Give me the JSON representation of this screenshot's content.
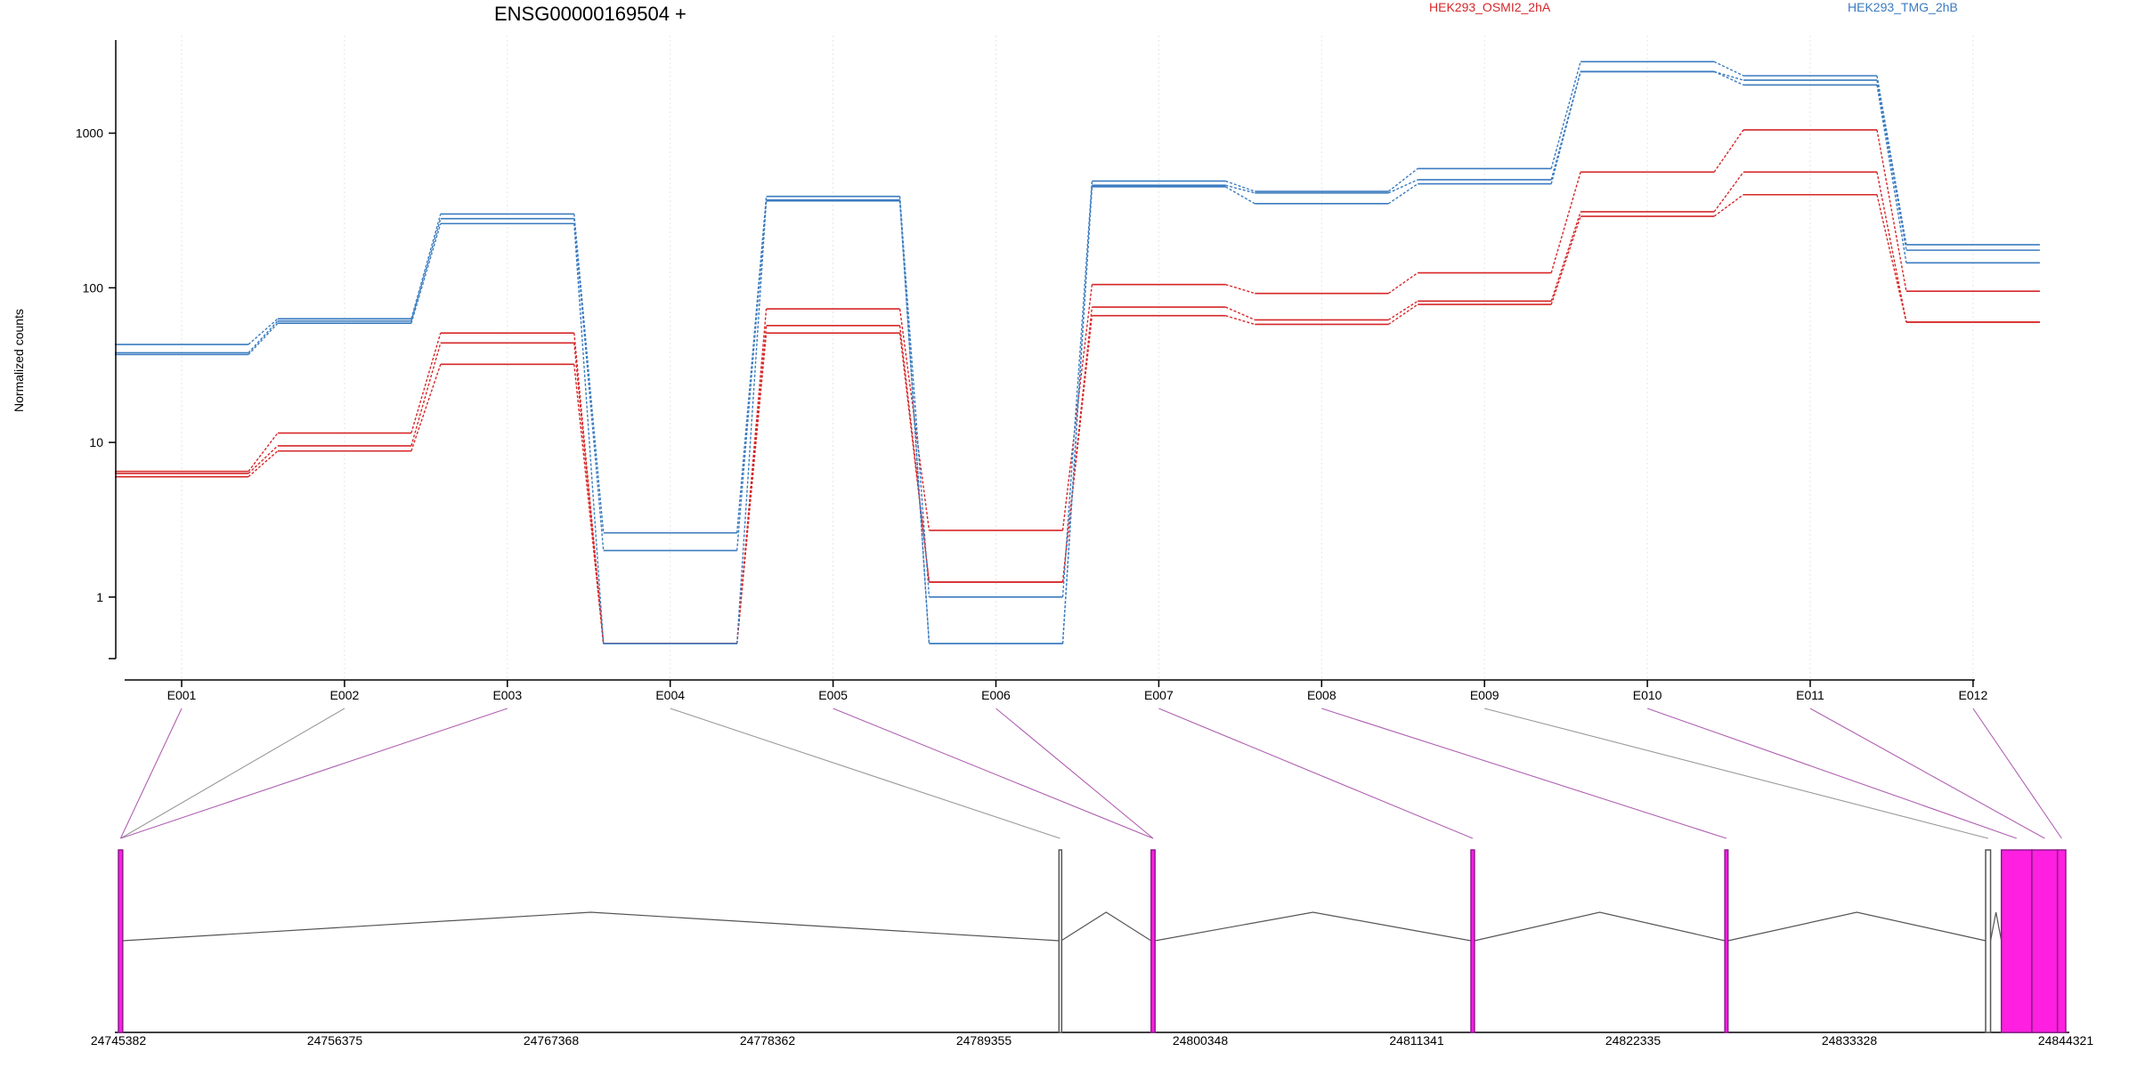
{
  "chart_data": {
    "type": "line",
    "title": "ENSG00000169504 +",
    "ylabel": "Normalized counts",
    "yscale": "log",
    "ylim": [
      0.4,
      4000
    ],
    "yticks": [
      1,
      10,
      100,
      1000
    ],
    "ytick_labels": [
      "1",
      "10",
      "100",
      "1000"
    ],
    "categories": [
      "E001",
      "E002",
      "E003",
      "E004",
      "E005",
      "E006",
      "E007",
      "E008",
      "E009",
      "E010",
      "E011",
      "E012"
    ],
    "legend": [
      {
        "label": "HEK293_OSMI2_2hA",
        "color": "#d62728"
      },
      {
        "label": "HEK293_TMG_2hB",
        "color": "#3a7bbf"
      }
    ],
    "series": [
      {
        "group": "HEK293_OSMI2_2hA",
        "color": "#d62728",
        "values": [
          6.5,
          11.5,
          51,
          0.5,
          73,
          2.7,
          105,
          92,
          125,
          560,
          1050,
          95
        ]
      },
      {
        "group": "HEK293_OSMI2_2hA",
        "color": "#d62728",
        "values": [
          6.3,
          9.5,
          44,
          0.5,
          57,
          1.25,
          75,
          62,
          82,
          310,
          560,
          60
        ]
      },
      {
        "group": "HEK293_OSMI2_2hA",
        "color": "#d62728",
        "values": [
          6.0,
          8.8,
          32,
          0.5,
          51,
          1.25,
          66,
          58,
          78,
          290,
          400,
          60
        ]
      },
      {
        "group": "HEK293_TMG_2hB",
        "color": "#3a7bbf",
        "values": [
          43,
          63,
          300,
          2.6,
          390,
          1.0,
          490,
          420,
          590,
          2900,
          2350,
          190
        ]
      },
      {
        "group": "HEK293_TMG_2hB",
        "color": "#3a7bbf",
        "values": [
          38,
          61,
          280,
          2.0,
          370,
          0.5,
          460,
          410,
          500,
          2500,
          2200,
          175
        ]
      },
      {
        "group": "HEK293_TMG_2hB",
        "color": "#3a7bbf",
        "values": [
          37,
          59,
          260,
          0.5,
          365,
          0.5,
          450,
          350,
          470,
          2500,
          2050,
          145
        ]
      }
    ],
    "gene_model": {
      "coordinate_labels": [
        "24745382",
        "24756375",
        "24767368",
        "24778362",
        "24789355",
        "24800348",
        "24811341",
        "24822335",
        "24833328",
        "24844321"
      ],
      "exon_start": 24745382,
      "exon_end": 24844321,
      "exons": [
        {
          "id": "E001",
          "start": 24745382,
          "end": 24745600,
          "tested": true
        },
        {
          "id": "E002",
          "start": 24745382,
          "end": 24745600,
          "tested": false
        },
        {
          "id": "E003",
          "start": 24745382,
          "end": 24745600,
          "tested": true
        },
        {
          "id": "E004",
          "start": 24793170,
          "end": 24793280,
          "tested": false
        },
        {
          "id": "E005",
          "start": 24797850,
          "end": 24798050,
          "tested": true
        },
        {
          "id": "E006",
          "start": 24797850,
          "end": 24798050,
          "tested": true
        },
        {
          "id": "E007",
          "start": 24814100,
          "end": 24814280,
          "tested": true
        },
        {
          "id": "E008",
          "start": 24827000,
          "end": 24827160,
          "tested": true
        },
        {
          "id": "E009",
          "start": 24840250,
          "end": 24840500,
          "tested": false
        },
        {
          "id": "E010",
          "start": 24841050,
          "end": 24842600,
          "tested": true
        },
        {
          "id": "E011",
          "start": 24842600,
          "end": 24843900,
          "tested": true
        },
        {
          "id": "E012",
          "start": 24843900,
          "end": 24844321,
          "tested": true
        }
      ]
    },
    "colors": {
      "tested_exon": "#ff1fe0",
      "tested_exon_edge": "#8e1a8e",
      "untested_line": "#999999",
      "tested_line": "#b060b0",
      "intron_line": "#555555",
      "axis": "#000000",
      "grid": "#e6e6e6"
    }
  }
}
